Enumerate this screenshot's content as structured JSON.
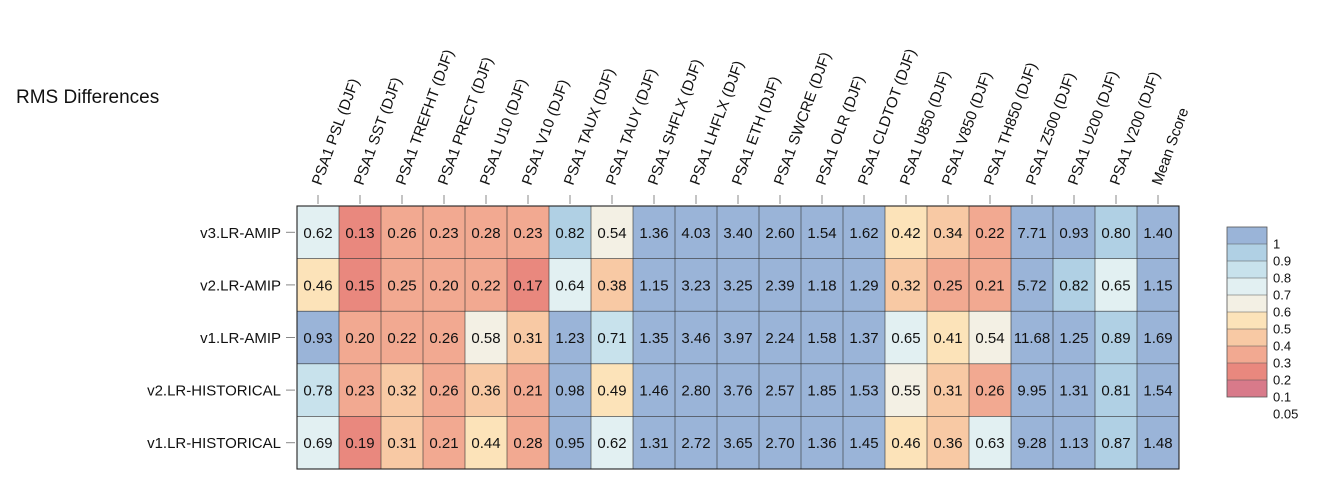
{
  "chart_data": {
    "type": "heatmap",
    "title": "RMS Differences",
    "columns": [
      "PSA1 PSL (DJF)",
      "PSA1 SST (DJF)",
      "PSA1 TREFHT (DJF)",
      "PSA1 PRECT (DJF)",
      "PSA1 U10 (DJF)",
      "PSA1 V10 (DJF)",
      "PSA1 TAUX (DJF)",
      "PSA1 TAUY (DJF)",
      "PSA1 SHFLX (DJF)",
      "PSA1 LHFLX (DJF)",
      "PSA1 ETH (DJF)",
      "PSA1 SWCRE (DJF)",
      "PSA1 OLR (DJF)",
      "PSA1 CLDTOT (DJF)",
      "PSA1 U850 (DJF)",
      "PSA1 V850 (DJF)",
      "PSA1 TH850 (DJF)",
      "PSA1 Z500 (DJF)",
      "PSA1 U200 (DJF)",
      "PSA1 V200 (DJF)",
      "Mean Score"
    ],
    "rows": [
      "v3.LR-AMIP",
      "v2.LR-AMIP",
      "v1.LR-AMIP",
      "v2.LR-HISTORICAL",
      "v1.LR-HISTORICAL"
    ],
    "values": [
      [
        0.62,
        0.13,
        0.26,
        0.23,
        0.28,
        0.23,
        0.82,
        0.54,
        1.36,
        4.03,
        3.4,
        2.6,
        1.54,
        1.62,
        0.42,
        0.34,
        0.22,
        7.71,
        0.93,
        0.8,
        1.4
      ],
      [
        0.46,
        0.15,
        0.25,
        0.2,
        0.22,
        0.17,
        0.64,
        0.38,
        1.15,
        3.23,
        3.25,
        2.39,
        1.18,
        1.29,
        0.32,
        0.25,
        0.21,
        5.72,
        0.82,
        0.65,
        1.15
      ],
      [
        0.93,
        0.2,
        0.22,
        0.26,
        0.58,
        0.31,
        1.23,
        0.71,
        1.35,
        3.46,
        3.97,
        2.24,
        1.58,
        1.37,
        0.65,
        0.41,
        0.54,
        11.68,
        1.25,
        0.89,
        1.69
      ],
      [
        0.78,
        0.23,
        0.32,
        0.26,
        0.36,
        0.21,
        0.98,
        0.49,
        1.46,
        2.8,
        3.76,
        2.57,
        1.85,
        1.53,
        0.55,
        0.31,
        0.26,
        9.95,
        1.31,
        0.81,
        1.54
      ],
      [
        0.69,
        0.19,
        0.31,
        0.21,
        0.44,
        0.28,
        0.95,
        0.62,
        1.31,
        2.72,
        3.65,
        2.7,
        1.36,
        1.45,
        0.46,
        0.36,
        0.63,
        9.28,
        1.13,
        0.87,
        1.48
      ]
    ],
    "display_values": [
      [
        "0.62",
        "0.13",
        "0.26",
        "0.23",
        "0.28",
        "0.23",
        "0.82",
        "0.54",
        "1.36",
        "4.03",
        "3.40",
        "2.60",
        "1.54",
        "1.62",
        "0.42",
        "0.34",
        "0.22",
        "7.71",
        "0.93",
        "0.80",
        "1.40"
      ],
      [
        "0.46",
        "0.15",
        "0.25",
        "0.20",
        "0.22",
        "0.17",
        "0.64",
        "0.38",
        "1.15",
        "3.23",
        "3.25",
        "2.39",
        "1.18",
        "1.29",
        "0.32",
        "0.25",
        "0.21",
        "5.72",
        "0.82",
        "0.65",
        "1.15"
      ],
      [
        "0.93",
        "0.20",
        "0.22",
        "0.26",
        "0.58",
        "0.31",
        "1.23",
        "0.71",
        "1.35",
        "3.46",
        "3.97",
        "2.24",
        "1.58",
        "1.37",
        "0.65",
        "0.41",
        "0.54",
        "11.68",
        "1.25",
        "0.89",
        "1.69"
      ],
      [
        "0.78",
        "0.23",
        "0.32",
        "0.26",
        "0.36",
        "0.21",
        "0.98",
        "0.49",
        "1.46",
        "2.80",
        "3.76",
        "2.57",
        "1.85",
        "1.53",
        "0.55",
        "0.31",
        "0.26",
        "9.95",
        "1.31",
        "0.81",
        "1.54"
      ],
      [
        "0.69",
        "0.19",
        "0.31",
        "0.21",
        "0.44",
        "0.28",
        "0.95",
        "0.62",
        "1.31",
        "2.72",
        "3.65",
        "2.70",
        "1.36",
        "1.45",
        "0.46",
        "0.36",
        "0.63",
        "9.28",
        "1.13",
        "0.87",
        "1.48"
      ]
    ],
    "colorbar": {
      "thresholds": [
        0.05,
        0.1,
        0.2,
        0.3,
        0.4,
        0.5,
        0.6,
        0.7,
        0.8,
        0.9,
        1
      ],
      "labels": [
        "1",
        "0.9",
        "0.8",
        "0.7",
        "0.6",
        "0.5",
        "0.4",
        "0.3",
        "0.2",
        "0.1",
        "0.05"
      ],
      "colors": [
        "#d87a8a",
        "#e9887e",
        "#f2a991",
        "#f8c9a4",
        "#fce3b9",
        "#f3f0e4",
        "#e2f0f2",
        "#c8e2ec",
        "#b0d0e4",
        "#9ab4d8"
      ],
      "placement": "right"
    }
  }
}
